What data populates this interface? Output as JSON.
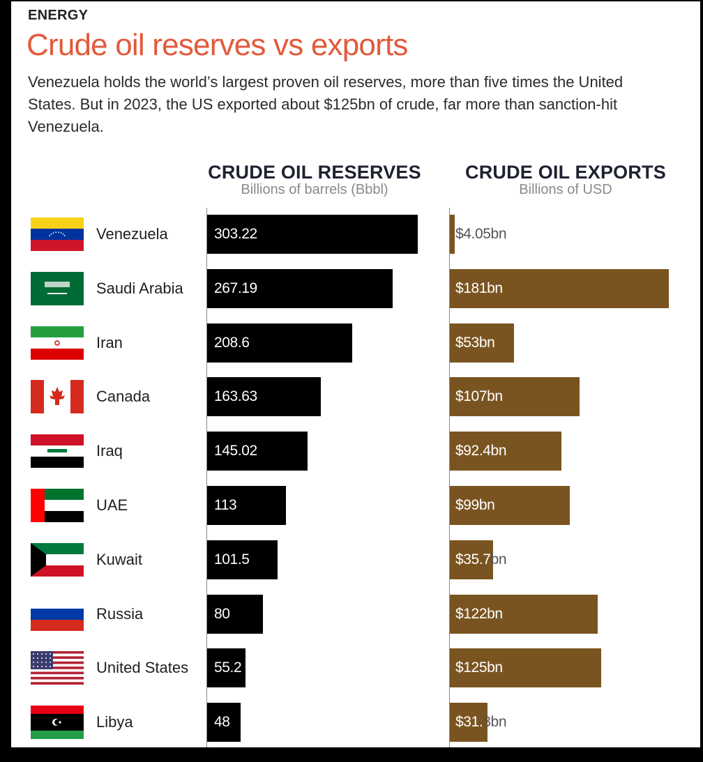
{
  "header": {
    "kicker": "ENERGY",
    "title": "Crude oil reserves vs exports",
    "subtitle": "Venezuela holds the world’s largest proven oil reserves, more than five times the United States. But in 2023, the US exported about $125bn of crude, far more than sanction-hit Venezuela."
  },
  "columns": {
    "reserves": {
      "title": "CRUDE OIL RESERVES",
      "unit": "Billions of barrels (Bbbl)"
    },
    "exports": {
      "title": "CRUDE OIL EXPORTS",
      "unit": "Billions of USD"
    }
  },
  "colors": {
    "title": "#e25a3b",
    "reserves_bar": "#000000",
    "exports_bar": "#7a5420"
  },
  "chart_data": {
    "type": "bar",
    "categories": [
      "Venezuela",
      "Saudi Arabia",
      "Iran",
      "Canada",
      "Iraq",
      "UAE",
      "Kuwait",
      "Russia",
      "United States",
      "Libya"
    ],
    "flags": [
      "venezuela-flag-icon",
      "saudi-arabia-flag-icon",
      "iran-flag-icon",
      "canada-flag-icon",
      "iraq-flag-icon",
      "uae-flag-icon",
      "kuwait-flag-icon",
      "russia-flag-icon",
      "united-states-flag-icon",
      "libya-flag-icon"
    ],
    "series": [
      {
        "name": "CRUDE OIL RESERVES",
        "values": [
          303.22,
          267.19,
          208.6,
          163.63,
          145.02,
          113,
          101.5,
          80,
          55.2,
          48
        ],
        "labels": [
          "303.22",
          "267.19",
          "208.6",
          "163.63",
          "145.02",
          "113",
          "101.5",
          "80",
          "55.2",
          "48"
        ]
      },
      {
        "name": "CRUDE OIL EXPORTS",
        "values": [
          4.05,
          181,
          53,
          107,
          92.4,
          99,
          35.7,
          122,
          125,
          31.3
        ],
        "labels": [
          "$4.05bn",
          "$181bn",
          "$53bn",
          "$107bn",
          "$92.4bn",
          "$99bn",
          "$35.7bn",
          "$122bn",
          "$125bn",
          "$31.3bn"
        ]
      }
    ]
  }
}
